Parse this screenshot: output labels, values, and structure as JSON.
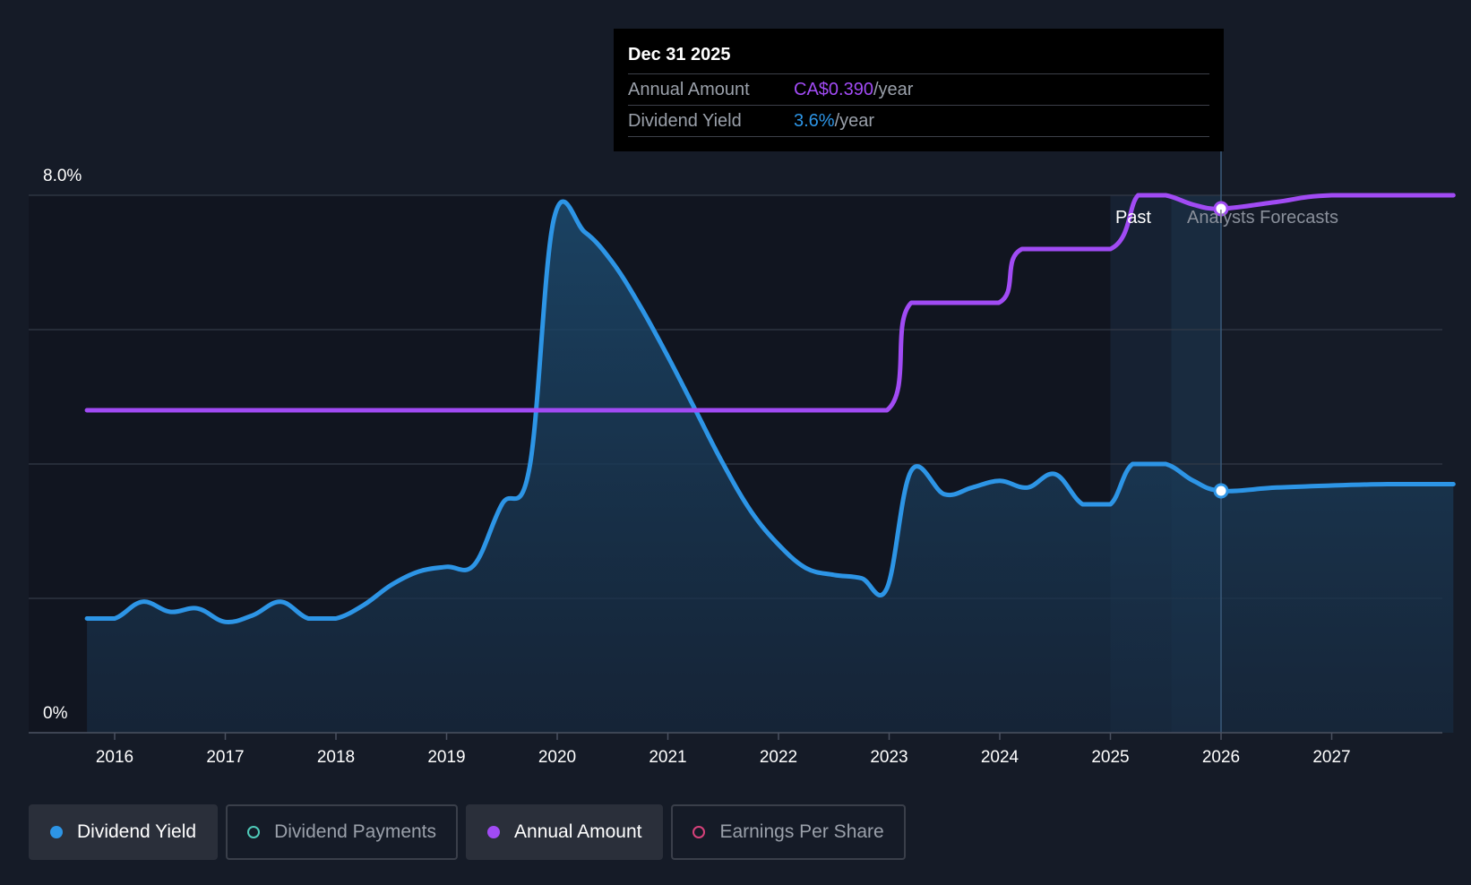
{
  "tooltip": {
    "date": "Dec 31 2025",
    "annual_label": "Annual Amount",
    "annual_value": "CA$0.390",
    "annual_unit": "/year",
    "yield_label": "Dividend Yield",
    "yield_value": "3.6%",
    "yield_unit": "/year"
  },
  "regions": {
    "past": "Past",
    "forecast": "Analysts Forecasts"
  },
  "legend": [
    {
      "label": "Dividend Yield",
      "color": "#2d95e6",
      "active": true,
      "filled": true
    },
    {
      "label": "Dividend Payments",
      "color": "#4fc9b8",
      "active": false,
      "filled": false
    },
    {
      "label": "Annual Amount",
      "color": "#a14bf4",
      "active": true,
      "filled": true
    },
    {
      "label": "Earnings Per Share",
      "color": "#d6417a",
      "active": false,
      "filled": false
    }
  ],
  "colors": {
    "yield": "#2d95e6",
    "annual": "#a14bf4",
    "grid": "#333a47",
    "background": "#151b27"
  },
  "chart_data": {
    "type": "line",
    "x_ticks": [
      "2016",
      "2017",
      "2018",
      "2019",
      "2020",
      "2021",
      "2022",
      "2023",
      "2024",
      "2025",
      "2026",
      "2027"
    ],
    "y_ticks": [
      "0%",
      "8.0%"
    ],
    "ylim": [
      0,
      8.0
    ],
    "xlim": [
      2015.25,
      2028.1
    ],
    "grid": true,
    "series": [
      {
        "name": "Dividend Yield",
        "unit": "%",
        "points": [
          [
            2015.75,
            1.7
          ],
          [
            2016.0,
            1.7
          ],
          [
            2016.25,
            1.95
          ],
          [
            2016.5,
            1.8
          ],
          [
            2016.75,
            1.85
          ],
          [
            2017.0,
            1.65
          ],
          [
            2017.25,
            1.75
          ],
          [
            2017.5,
            1.95
          ],
          [
            2017.75,
            1.7
          ],
          [
            2018.0,
            1.7
          ],
          [
            2018.25,
            1.9
          ],
          [
            2018.5,
            2.2
          ],
          [
            2018.75,
            2.4
          ],
          [
            2019.0,
            2.47
          ],
          [
            2019.25,
            2.5
          ],
          [
            2019.5,
            3.4
          ],
          [
            2019.75,
            3.95
          ],
          [
            2019.97,
            7.65
          ],
          [
            2020.25,
            7.45
          ],
          [
            2020.5,
            7.0
          ],
          [
            2020.75,
            6.35
          ],
          [
            2021.0,
            5.6
          ],
          [
            2021.25,
            4.8
          ],
          [
            2021.5,
            4.0
          ],
          [
            2021.75,
            3.3
          ],
          [
            2022.0,
            2.8
          ],
          [
            2022.25,
            2.45
          ],
          [
            2022.5,
            2.35
          ],
          [
            2022.75,
            2.3
          ],
          [
            2022.98,
            2.15
          ],
          [
            2023.2,
            3.9
          ],
          [
            2023.5,
            3.55
          ],
          [
            2023.75,
            3.65
          ],
          [
            2024.0,
            3.75
          ],
          [
            2024.25,
            3.65
          ],
          [
            2024.5,
            3.85
          ],
          [
            2024.75,
            3.4
          ],
          [
            2025.0,
            3.4
          ],
          [
            2025.2,
            4.0
          ],
          [
            2025.5,
            4.0
          ],
          [
            2025.75,
            3.75
          ],
          [
            2026.0,
            3.6
          ],
          [
            2026.5,
            3.65
          ],
          [
            2027.0,
            3.68
          ],
          [
            2027.5,
            3.7
          ],
          [
            2028.1,
            3.7
          ]
        ]
      },
      {
        "name": "Annual Amount",
        "unit": "CA$/year",
        "points": [
          [
            2015.75,
            0.24
          ],
          [
            2022.98,
            0.24
          ],
          [
            2023.2,
            0.32
          ],
          [
            2023.99,
            0.32
          ],
          [
            2024.2,
            0.36
          ],
          [
            2025.0,
            0.36
          ],
          [
            2025.25,
            0.4
          ],
          [
            2025.5,
            0.4
          ],
          [
            2025.75,
            0.393
          ],
          [
            2026.0,
            0.39
          ],
          [
            2026.5,
            0.395
          ],
          [
            2027.0,
            0.4
          ],
          [
            2028.1,
            0.4
          ]
        ]
      }
    ],
    "highlight": {
      "date": "Dec 31 2025",
      "yield": 3.6,
      "annual_amount": 0.39
    },
    "past_forecast_split": 2025.0,
    "forecast_start": 2026.0
  }
}
